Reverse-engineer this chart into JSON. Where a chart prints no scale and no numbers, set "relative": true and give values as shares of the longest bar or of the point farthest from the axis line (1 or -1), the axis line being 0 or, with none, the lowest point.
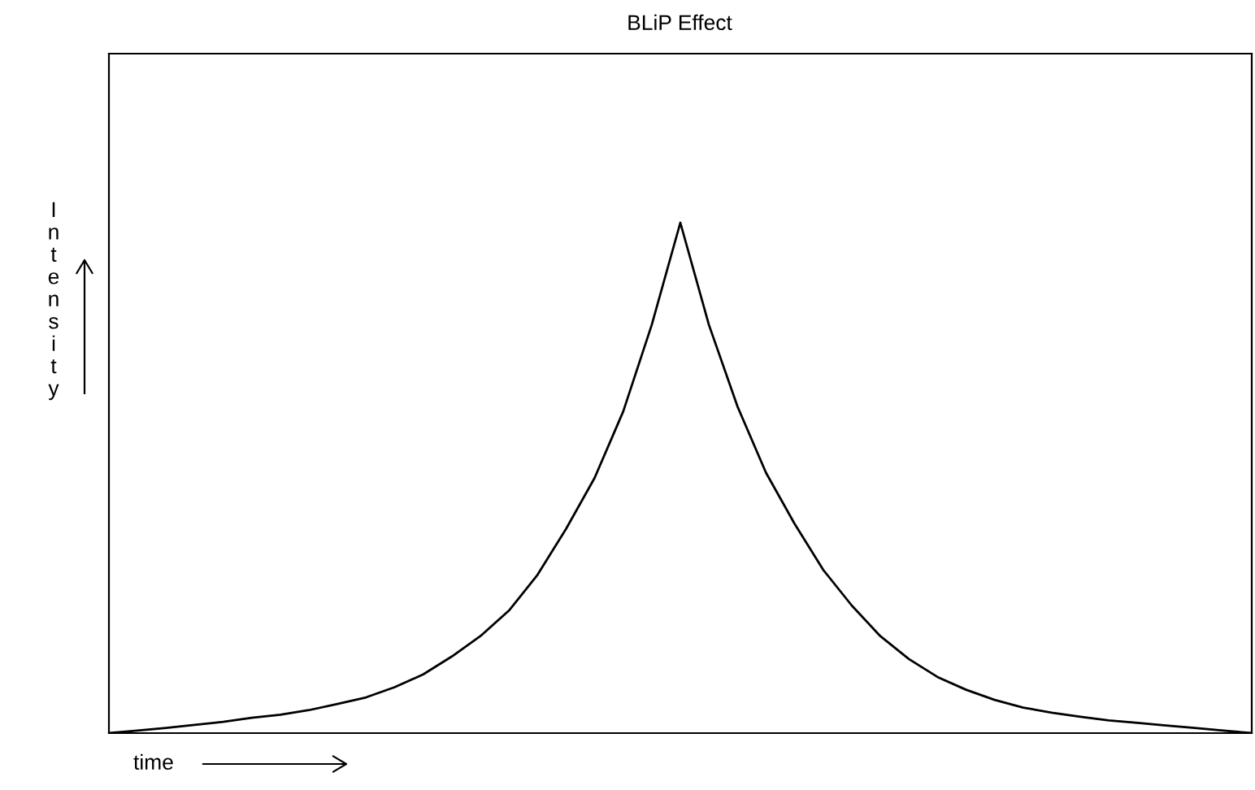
{
  "chart_data": {
    "type": "line",
    "title": "BLiP Effect",
    "xlabel": "time",
    "ylabel": "Intensity",
    "relative": true,
    "grid": false,
    "legend": false,
    "marker": "none",
    "line_style": "solid",
    "categories": [
      null,
      null,
      null,
      null,
      null,
      null,
      null,
      null,
      null,
      null,
      null,
      null,
      null,
      null,
      null,
      null,
      null,
      null,
      null,
      null,
      null,
      null,
      null,
      null,
      null,
      null,
      null,
      null,
      null,
      null,
      null,
      null,
      null,
      null,
      null,
      null,
      null,
      null,
      null,
      null,
      null
    ],
    "series": [
      {
        "color": "#000000",
        "values": [
          0,
          0.005,
          0.01,
          0.016,
          0.022,
          0.03,
          0.036,
          0.045,
          0.057,
          0.07,
          0.09,
          0.115,
          0.15,
          0.19,
          0.24,
          0.31,
          0.4,
          0.5,
          0.63,
          0.8,
          1,
          0.8,
          0.64,
          0.51,
          0.41,
          0.32,
          0.25,
          0.19,
          0.145,
          0.11,
          0.085,
          0.065,
          0.05,
          0.04,
          0.032,
          0.025,
          0.02,
          0.015,
          0.01,
          0.005,
          0
        ]
      }
    ]
  }
}
